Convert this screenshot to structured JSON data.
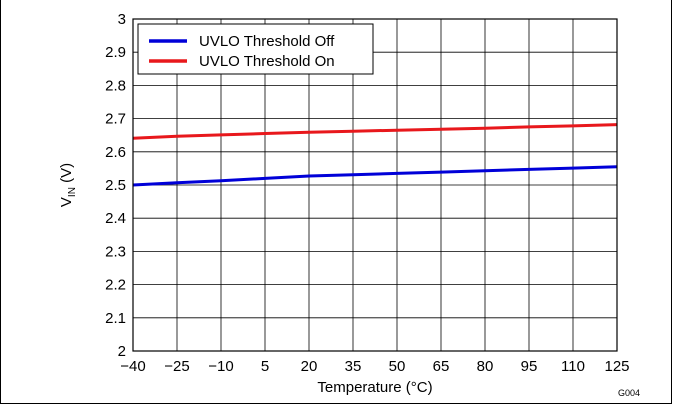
{
  "chart_data": {
    "type": "line",
    "x": [
      -40,
      -25,
      -10,
      5,
      20,
      35,
      50,
      65,
      80,
      95,
      110,
      125
    ],
    "x_tick_labels": [
      "−40",
      "−25",
      "−10",
      "5",
      "20",
      "35",
      "50",
      "65",
      "80",
      "95",
      "110",
      "125"
    ],
    "y_tick_labels": [
      "2",
      "2.1",
      "2.2",
      "2.3",
      "2.4",
      "2.5",
      "2.6",
      "2.7",
      "2.8",
      "2.9",
      "3"
    ],
    "xlim": [
      -40,
      125
    ],
    "ylim": [
      2,
      3
    ],
    "xlabel": "Temperature (°C)",
    "ylabel_main": "V",
    "ylabel_sub": "IN",
    "ylabel_unit": " (V)",
    "series": [
      {
        "name": "UVLO Threshold Off",
        "color": "#0000d8",
        "values": [
          2.5,
          2.507,
          2.513,
          2.52,
          2.527,
          2.531,
          2.535,
          2.539,
          2.543,
          2.547,
          2.551,
          2.555
        ]
      },
      {
        "name": "UVLO Threshold On",
        "color": "#e8181c",
        "values": [
          2.641,
          2.647,
          2.651,
          2.655,
          2.659,
          2.662,
          2.665,
          2.668,
          2.671,
          2.675,
          2.678,
          2.682
        ]
      }
    ],
    "grid": true,
    "legend_position": "top-left",
    "figure_code": "G004"
  }
}
